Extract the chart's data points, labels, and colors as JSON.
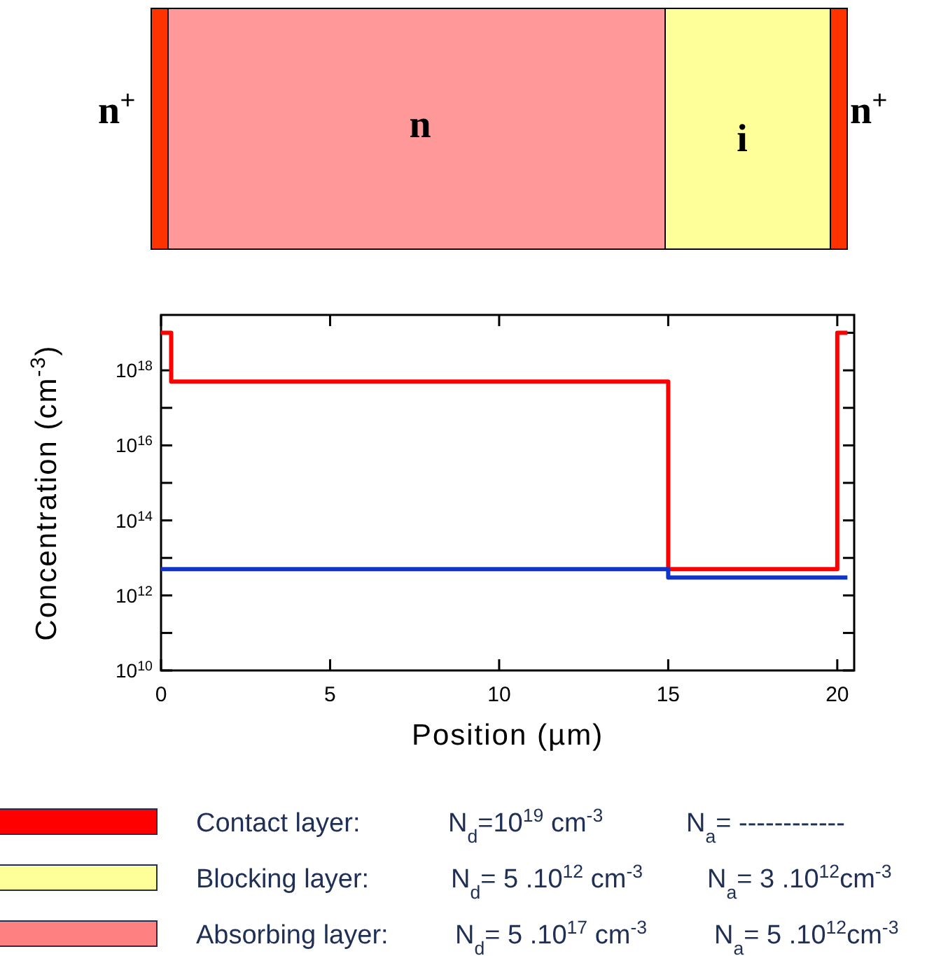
{
  "chart_data": {
    "type": "step",
    "xlabel": "Position (µm)",
    "ylabel": "Concentration (cm$^{-3}$)",
    "log": true,
    "xlim": [
      0,
      20.5
    ],
    "xticks": [
      0,
      5,
      10,
      15,
      20
    ],
    "ylim": [
      10000000000.0,
      3e+19
    ],
    "yticks": [
      {
        "value": 10000000000.0,
        "label": "10$^{10}$"
      },
      {
        "value": 100000000000.0,
        "label": null
      },
      {
        "value": 1000000000000.0,
        "label": "10$^{12}$"
      },
      {
        "value": 10000000000000.0,
        "label": null
      },
      {
        "value": 100000000000000.0,
        "label": "10$^{14}$"
      },
      {
        "value": 1000000000000000.0,
        "label": null
      },
      {
        "value": 1e+16,
        "label": "10$^{16}$"
      },
      {
        "value": 1e+17,
        "label": null
      },
      {
        "value": 1e+18,
        "label": "10$^{18}$"
      },
      {
        "value": 1e+19,
        "label": null
      }
    ],
    "series": [
      {
        "color": "#ff0000",
        "x": [
          0,
          0.3,
          15,
          20,
          20.3
        ],
        "values": [
          1e+19,
          5e+17,
          5000000000000.0,
          1e+19,
          1e+19
        ]
      },
      {
        "color": "#1034c8",
        "x": [
          0,
          15,
          20.3
        ],
        "values": [
          5000000000000.0,
          3000000000000.0,
          3000000000000.0
        ]
      }
    ],
    "annotations": [
      "n$^{+}$",
      "n",
      "i",
      "n$^{+}$",
      "Contact layer:",
      "N$_{d}$=10$^{19}$ cm$^{-3}$",
      "N$_{a}$= ------------",
      "Blocking layer:",
      "N$_{d}$= 5 .10$^{12}$ cm$^{-3}$",
      "N$_{a}$= 3 .10$^{12}$cm$^{-3}$",
      "Absorbing layer:",
      "N$_{d}$= 5 .10$^{17}$ cm$^{-3}$",
      "N$_{a}$= 5 .10$^{12}$cm$^{-3}$"
    ]
  }
}
